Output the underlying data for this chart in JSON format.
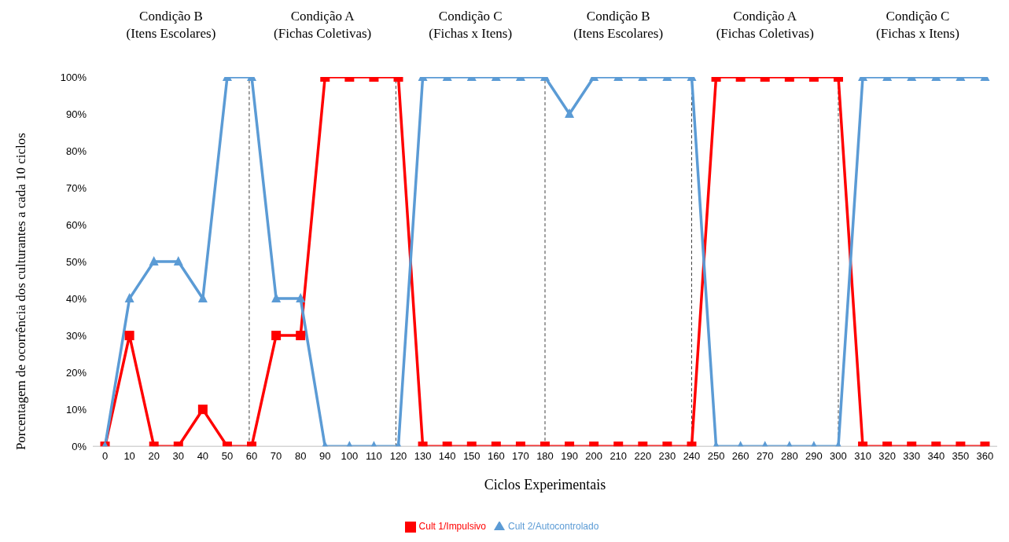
{
  "chart_data": {
    "type": "line",
    "xlabel": "Ciclos Experimentais",
    "ylabel": "Porcentagem de ocorrência dos culturantes a cada 10 ciclos",
    "x": [
      0,
      10,
      20,
      30,
      40,
      50,
      60,
      70,
      80,
      90,
      100,
      110,
      120,
      130,
      140,
      150,
      160,
      170,
      180,
      190,
      200,
      210,
      220,
      230,
      240,
      250,
      260,
      270,
      280,
      290,
      300,
      310,
      320,
      330,
      340,
      350,
      360
    ],
    "series": [
      {
        "name": "Cult 1/Impulsivo",
        "color": "#ff0000",
        "marker": "square",
        "values": [
          0,
          30,
          0,
          0,
          10,
          0,
          0,
          30,
          30,
          100,
          100,
          100,
          100,
          0,
          0,
          0,
          0,
          0,
          0,
          0,
          0,
          0,
          0,
          0,
          0,
          100,
          100,
          100,
          100,
          100,
          100,
          0,
          0,
          0,
          0,
          0,
          0
        ]
      },
      {
        "name": "Cult 2/Autocontrolado",
        "color": "#5b9bd5",
        "marker": "triangle",
        "values": [
          0,
          40,
          50,
          50,
          40,
          100,
          100,
          40,
          40,
          0,
          0,
          0,
          0,
          100,
          100,
          100,
          100,
          100,
          100,
          90,
          100,
          100,
          100,
          100,
          100,
          0,
          0,
          0,
          0,
          0,
          0,
          100,
          100,
          100,
          100,
          100,
          100
        ]
      }
    ],
    "xlim": [
      -5,
      365
    ],
    "xticks": [
      0,
      10,
      20,
      30,
      40,
      50,
      60,
      70,
      80,
      90,
      100,
      110,
      120,
      130,
      140,
      150,
      160,
      170,
      180,
      190,
      200,
      210,
      220,
      230,
      240,
      250,
      260,
      270,
      280,
      290,
      300,
      310,
      320,
      330,
      340,
      350,
      360
    ],
    "ylim": [
      0,
      100
    ],
    "yticks": [
      {
        "value": 0,
        "label": "0%"
      },
      {
        "value": 10,
        "label": "10%"
      },
      {
        "value": 20,
        "label": "20%"
      },
      {
        "value": 30,
        "label": "30%"
      },
      {
        "value": 40,
        "label": "40%"
      },
      {
        "value": 50,
        "label": "50%"
      },
      {
        "value": 60,
        "label": "60%"
      },
      {
        "value": 70,
        "label": "70%"
      },
      {
        "value": 80,
        "label": "80%"
      },
      {
        "value": 90,
        "label": "90%"
      },
      {
        "value": 100,
        "label": "100%"
      }
    ],
    "ref_lines": [
      {
        "axis": "x",
        "value": 59,
        "color": "#404040",
        "line_style": "dashed"
      },
      {
        "axis": "x",
        "value": 119,
        "color": "#404040",
        "line_style": "dashed"
      },
      {
        "axis": "x",
        "value": 180,
        "color": "#404040",
        "line_style": "dashed"
      },
      {
        "axis": "x",
        "value": 240,
        "color": "#404040",
        "line_style": "dashed"
      },
      {
        "axis": "x",
        "value": 300,
        "color": "#404040",
        "line_style": "dashed"
      }
    ],
    "annotations": [
      "Condição B\n(Itens Escolares)",
      "Condição A\n(Fichas Coletivas)",
      "Condição C\n(Fichas x Itens)",
      "Condição B\n(Itens Escolares)",
      "Condição A\n(Fichas Coletivas)",
      "Condição C\n(Fichas x Itens)"
    ],
    "grid": false,
    "legend": "bottom",
    "line_style": "solid"
  }
}
